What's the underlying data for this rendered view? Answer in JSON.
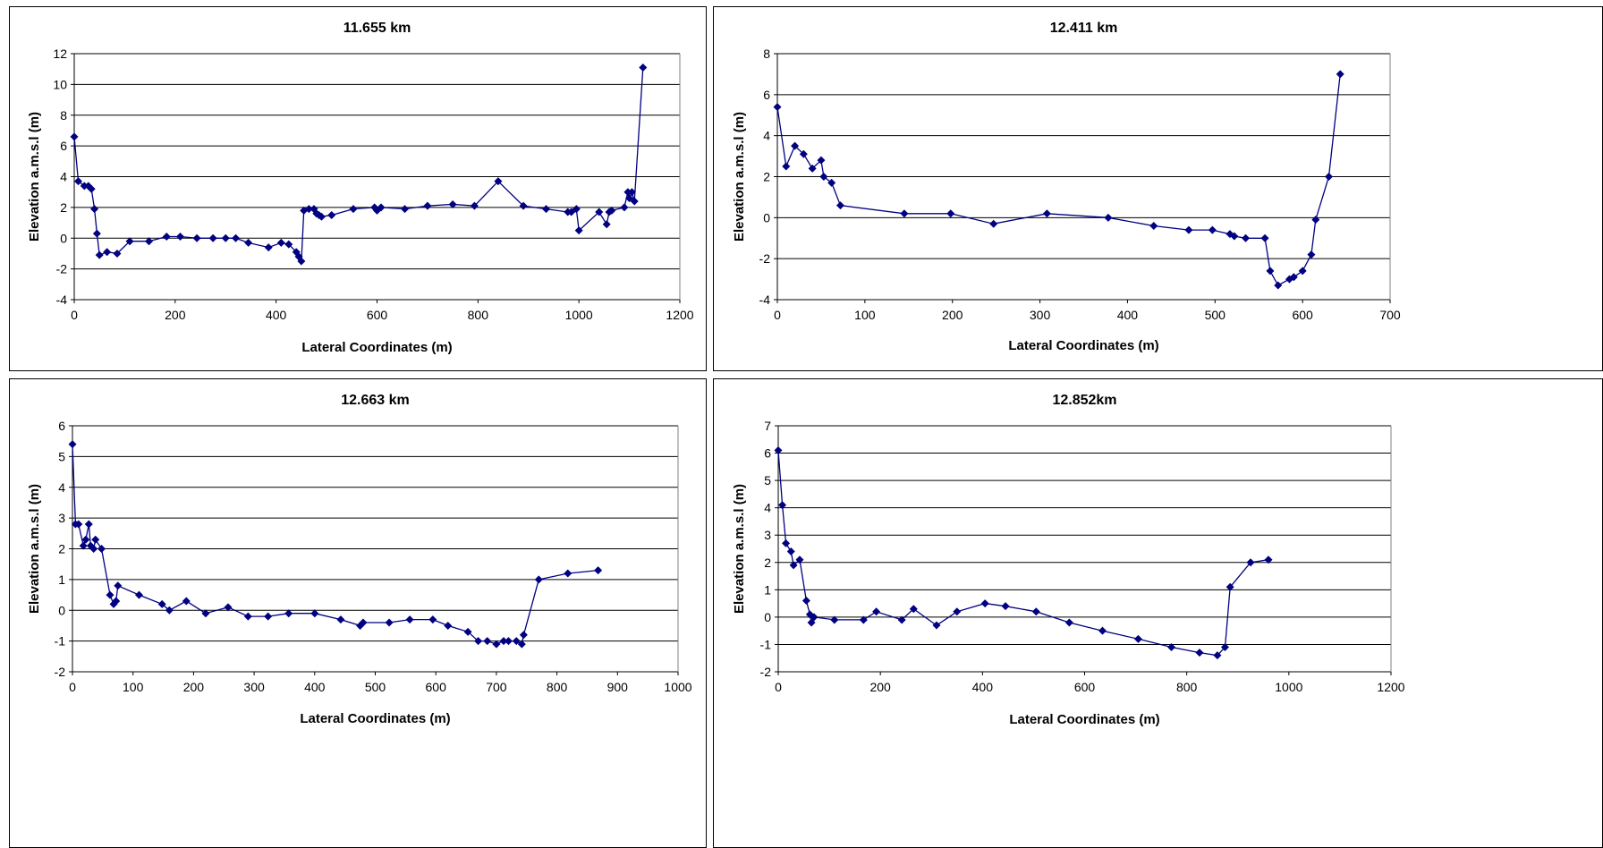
{
  "chart_data": [
    {
      "type": "line",
      "title": "11.655 km",
      "xlabel": "Lateral Coordinates (m)",
      "ylabel": "Elevation a.m.s.l (m)",
      "xlim": [
        0,
        1200
      ],
      "ylim": [
        -4,
        12
      ],
      "xticks": [
        0,
        200,
        400,
        600,
        800,
        1000,
        1200
      ],
      "yticks": [
        -4,
        -2,
        0,
        2,
        4,
        6,
        8,
        10,
        12
      ],
      "grid": "horizontal",
      "marker": "diamond",
      "color": "#000080",
      "series": [
        {
          "x": [
            0,
            8,
            20,
            28,
            34,
            40,
            45,
            50,
            65,
            85,
            110,
            148,
            183,
            210,
            243,
            275,
            300,
            320,
            345,
            385,
            410,
            425,
            440,
            445,
            450,
            455,
            465,
            475,
            480,
            485,
            490,
            510,
            553,
            595,
            600,
            608,
            655,
            700,
            750,
            793,
            840,
            890,
            935,
            978,
            985,
            995,
            1000,
            1040,
            1055,
            1060,
            1065,
            1090,
            1097,
            1100,
            1105,
            1110,
            1127
          ],
          "y": [
            6.6,
            3.7,
            3.4,
            3.4,
            3.2,
            1.9,
            0.3,
            -1.1,
            -0.9,
            -1.0,
            -0.2,
            -0.2,
            0.1,
            0.1,
            0.0,
            0.0,
            0.0,
            0.0,
            -0.3,
            -0.6,
            -0.3,
            -0.4,
            -0.9,
            -1.2,
            -1.5,
            1.8,
            1.9,
            1.9,
            1.6,
            1.5,
            1.4,
            1.5,
            1.9,
            2.0,
            1.8,
            2.0,
            1.9,
            2.1,
            2.2,
            2.1,
            3.7,
            2.1,
            1.9,
            1.7,
            1.7,
            1.9,
            0.5,
            1.7,
            0.9,
            1.7,
            1.8,
            2.0,
            3.0,
            2.6,
            3.0,
            2.4,
            11.1
          ]
        }
      ]
    },
    {
      "type": "line",
      "title": "12.411 km",
      "xlabel": "Lateral Coordinates (m)",
      "ylabel": "Elevation a.m.s.l (m)",
      "xlim": [
        0,
        700
      ],
      "ylim": [
        -4,
        8
      ],
      "xticks": [
        0,
        100,
        200,
        300,
        400,
        500,
        600,
        700
      ],
      "yticks": [
        -4,
        -2,
        0,
        2,
        4,
        6,
        8
      ],
      "grid": "horizontal",
      "marker": "diamond",
      "color": "#000080",
      "series": [
        {
          "x": [
            0,
            10,
            20,
            30,
            40,
            50,
            53,
            62,
            72,
            145,
            198,
            247,
            308,
            378,
            430,
            470,
            497,
            517,
            522,
            535,
            557,
            563,
            572,
            585,
            590,
            600,
            610,
            615,
            630,
            643
          ],
          "y": [
            5.4,
            2.5,
            3.5,
            3.1,
            2.4,
            2.8,
            2.0,
            1.7,
            0.6,
            0.2,
            0.2,
            -0.3,
            0.2,
            0.0,
            -0.4,
            -0.6,
            -0.6,
            -0.8,
            -0.9,
            -1.0,
            -1.0,
            -2.6,
            -3.3,
            -3.0,
            -2.9,
            -2.6,
            -1.8,
            -0.1,
            2.0,
            7.0
          ]
        }
      ]
    },
    {
      "type": "line",
      "title": "12.663 km",
      "xlabel": "Lateral Coordinates (m)",
      "ylabel": "Elevation a.m.s.l (m)",
      "xlim": [
        0,
        1000
      ],
      "ylim": [
        -2,
        6
      ],
      "xticks": [
        0,
        100,
        200,
        300,
        400,
        500,
        600,
        700,
        800,
        900,
        1000
      ],
      "yticks": [
        -2,
        -1,
        0,
        1,
        2,
        3,
        4,
        5,
        6
      ],
      "grid": "horizontal",
      "marker": "diamond",
      "color": "#000080",
      "series": [
        {
          "x": [
            0,
            5,
            10,
            18,
            22,
            27,
            30,
            35,
            38,
            48,
            62,
            68,
            72,
            75,
            110,
            148,
            160,
            188,
            220,
            257,
            290,
            323,
            357,
            400,
            443,
            475,
            480,
            523,
            557,
            595,
            620,
            653,
            670,
            685,
            700,
            712,
            720,
            733,
            742,
            745,
            770,
            818,
            868
          ],
          "y": [
            5.4,
            2.8,
            2.8,
            2.1,
            2.3,
            2.8,
            2.1,
            2.0,
            2.3,
            2.0,
            0.5,
            0.2,
            0.3,
            0.8,
            0.5,
            0.2,
            0.0,
            0.3,
            -0.1,
            0.1,
            -0.2,
            -0.2,
            -0.1,
            -0.1,
            -0.3,
            -0.5,
            -0.4,
            -0.4,
            -0.3,
            -0.3,
            -0.5,
            -0.7,
            -1.0,
            -1.0,
            -1.1,
            -1.0,
            -1.0,
            -1.0,
            -1.1,
            -0.8,
            1.0,
            1.2,
            1.3
          ]
        }
      ]
    },
    {
      "type": "line",
      "title": "12.852km",
      "xlabel": "Lateral Coordinates (m)",
      "ylabel": "Elevation a.m.s.l (m)",
      "xlim": [
        0,
        1200
      ],
      "ylim": [
        -2,
        7
      ],
      "xticks": [
        0,
        200,
        400,
        600,
        800,
        1000,
        1200
      ],
      "yticks": [
        -2,
        -1,
        0,
        1,
        2,
        3,
        4,
        5,
        6,
        7
      ],
      "grid": "horizontal",
      "marker": "diamond",
      "color": "#000080",
      "series": [
        {
          "x": [
            0,
            8,
            15,
            25,
            30,
            42,
            55,
            62,
            65,
            70,
            110,
            167,
            192,
            242,
            265,
            310,
            350,
            405,
            445,
            505,
            570,
            635,
            705,
            770,
            825,
            860,
            875,
            885,
            925,
            960
          ],
          "y": [
            6.1,
            4.1,
            2.7,
            2.4,
            1.9,
            2.1,
            0.6,
            0.1,
            -0.2,
            0.0,
            -0.1,
            -0.1,
            0.2,
            -0.1,
            0.3,
            -0.3,
            0.2,
            0.5,
            0.4,
            0.2,
            -0.2,
            -0.5,
            -0.8,
            -1.1,
            -1.3,
            -1.4,
            -1.1,
            1.1,
            2.0,
            2.1
          ]
        }
      ]
    }
  ]
}
